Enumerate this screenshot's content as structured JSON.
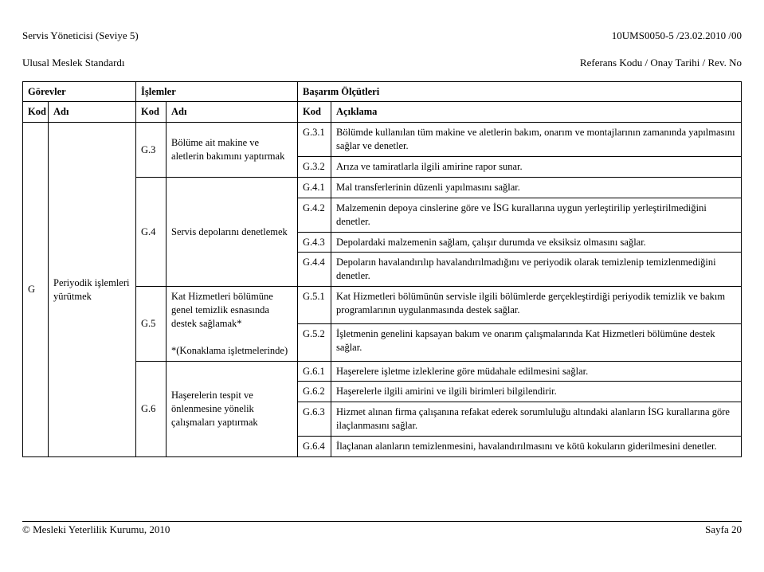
{
  "header": {
    "left_line1": "Servis Yöneticisi (Seviye 5)",
    "left_line2": "Ulusal Meslek Standardı",
    "right_line1": "10UMS0050-5 /23.02.2010   /00",
    "right_line2": "Referans Kodu / Onay Tarihi / Rev. No"
  },
  "table_headers": {
    "gorevler": "Görevler",
    "islemler": "İşlemler",
    "basarim": "Başarım Ölçütleri",
    "kod": "Kod",
    "adi": "Adı",
    "aciklama": "Açıklama"
  },
  "gorev": {
    "kod": "G",
    "adi": "Periyodik işlemleri yürütmek"
  },
  "islemler": {
    "g3": {
      "kod": "G.3",
      "adi": "Bölüme ait makine ve aletlerin bakımını yaptırmak"
    },
    "g4": {
      "kod": "G.4",
      "adi": "Servis depolarını denetlemek"
    },
    "g5": {
      "kod": "G.5",
      "adi": "Kat Hizmetleri bölümüne genel temizlik esnasında destek sağlamak*\n\n*(Konaklama işletmelerinde)"
    },
    "g6": {
      "kod": "G.6",
      "adi": "Haşerelerin tespit ve önlenmesine yönelik çalışmaları yaptırmak"
    }
  },
  "olcutler": {
    "g31": {
      "kod": "G.3.1",
      "text": "Bölümde kullanılan tüm makine ve aletlerin bakım, onarım ve montajlarının zamanında yapılmasını sağlar ve denetler."
    },
    "g32": {
      "kod": "G.3.2",
      "text": "Arıza ve tamiratlarla ilgili amirine rapor sunar."
    },
    "g41": {
      "kod": "G.4.1",
      "text": "Mal transferlerinin düzenli yapılmasını sağlar."
    },
    "g42": {
      "kod": "G.4.2",
      "text": "Malzemenin depoya cinslerine göre ve İSG kurallarına uygun yerleştirilip yerleştirilmediğini denetler."
    },
    "g43": {
      "kod": "G.4.3",
      "text": "Depolardaki malzemenin sağlam, çalışır durumda ve eksiksiz olmasını sağlar."
    },
    "g44": {
      "kod": "G.4.4",
      "text": "Depoların havalandırılıp havalandırılmadığını ve periyodik olarak temizlenip temizlenmediğini denetler."
    },
    "g51": {
      "kod": "G.5.1",
      "text": "Kat Hizmetleri bölümünün servisle ilgili bölümlerde gerçekleştirdiği periyodik temizlik ve bakım programlarının uygulanmasında destek sağlar."
    },
    "g52": {
      "kod": "G.5.2",
      "text": "İşletmenin genelini kapsayan bakım ve onarım çalışmalarında Kat Hizmetleri bölümüne destek sağlar."
    },
    "g61": {
      "kod": "G.6.1",
      "text": "Haşerelere işletme izleklerine göre müdahale edilmesini sağlar."
    },
    "g62": {
      "kod": "G.6.2",
      "text": "Haşerelerle ilgili amirini ve ilgili birimleri bilgilendirir."
    },
    "g63": {
      "kod": "G.6.3",
      "text": "Hizmet alınan firma çalışanına refakat ederek sorumluluğu altındaki alanların İSG kurallarına göre ilaçlanmasını sağlar."
    },
    "g64": {
      "kod": "G.6.4",
      "text": "İlaçlanan alanların temizlenmesini, havalandırılmasını ve kötü kokuların giderilmesini denetler."
    }
  },
  "footer": {
    "left": "© Mesleki Yeterlilik Kurumu, 2010",
    "right": "Sayfa 20"
  }
}
